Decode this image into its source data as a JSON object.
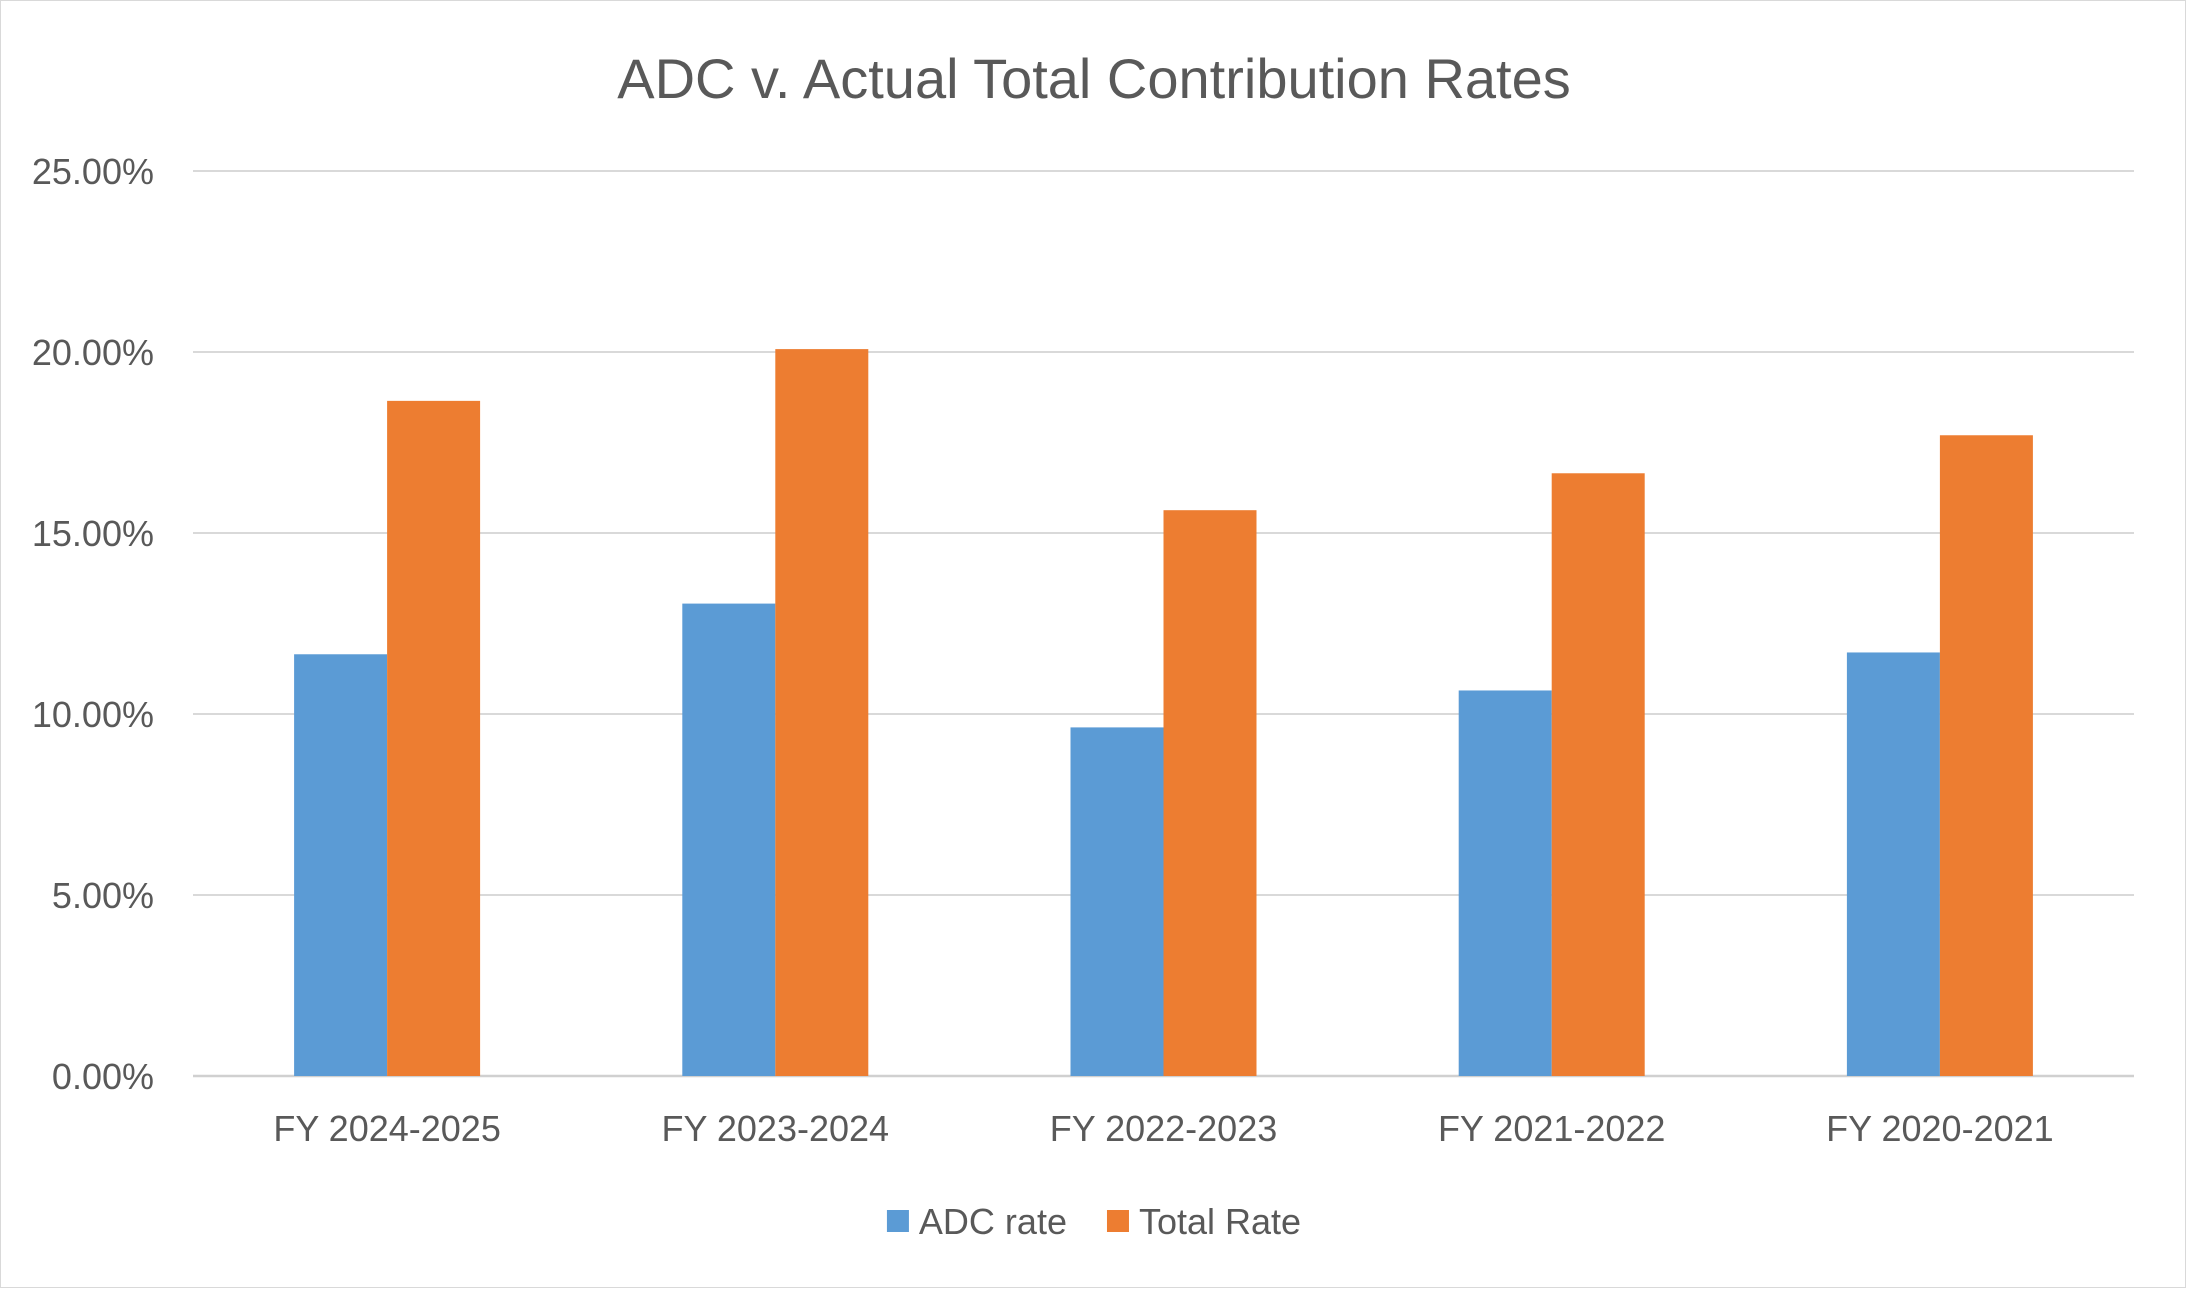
{
  "chart_data": {
    "type": "bar",
    "title": "ADC v. Actual Total Contribution Rates",
    "xlabel": "",
    "ylabel": "",
    "categories": [
      "FY 2024-2025",
      "FY 2023-2024",
      "FY 2022-2023",
      "FY 2021-2022",
      "FY 2020-2021"
    ],
    "series": [
      {
        "name": "ADC rate",
        "color": "#5B9BD5",
        "values": [
          11.65,
          13.05,
          9.63,
          10.65,
          11.7
        ]
      },
      {
        "name": "Total Rate",
        "color": "#ED7D31",
        "values": [
          18.65,
          20.08,
          15.63,
          16.65,
          17.7
        ]
      }
    ],
    "ylim": [
      0,
      25
    ],
    "yticks": [
      0,
      5,
      10,
      15,
      20,
      25
    ],
    "ytick_labels": [
      "0.00%",
      "5.00%",
      "10.00%",
      "15.00%",
      "20.00%",
      "25.00%"
    ],
    "grid": true,
    "legend_position": "bottom-center"
  }
}
